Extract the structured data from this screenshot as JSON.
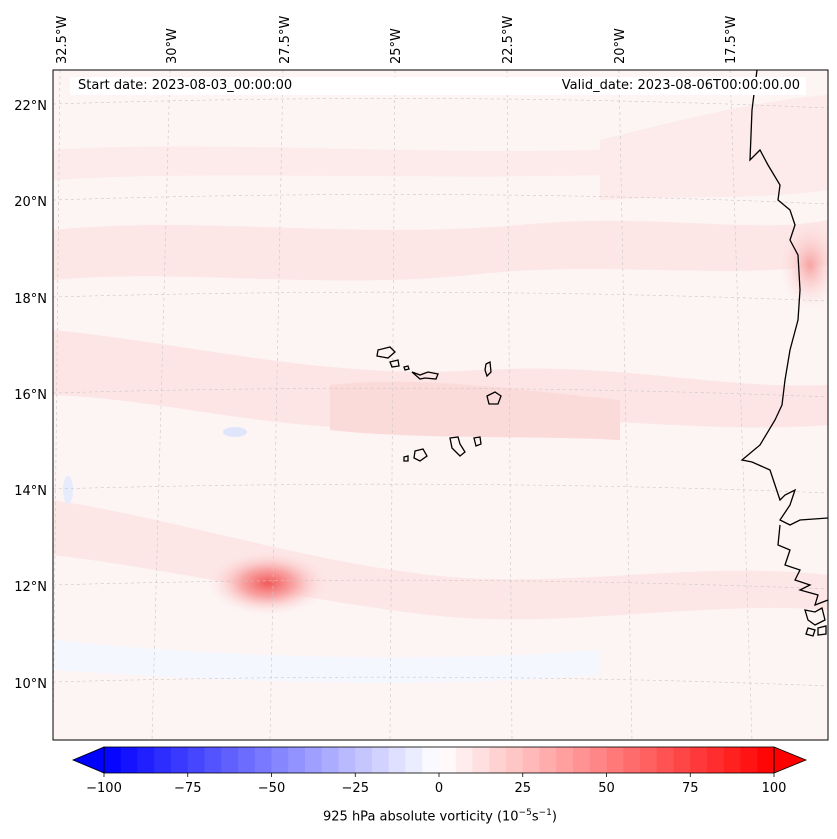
{
  "header": {
    "start_date": "Start date: 2023-08-03_00:00:00",
    "valid_date": "Valid_date: 2023-08-06T00:00:00.00"
  },
  "map": {
    "variable": "925 hPa absolute vorticity",
    "lon_labels": [
      "32.5°W",
      "30°W",
      "27.5°W",
      "25°W",
      "22.5°W",
      "20°W",
      "17.5°W"
    ],
    "lat_labels": [
      "22°N",
      "20°N",
      "18°N",
      "16°N",
      "14°N",
      "12°N",
      "10°N"
    ],
    "features": [
      "Cape Verde Islands",
      "West African coastline",
      "vorticity maximum near 12°N 28°W"
    ]
  },
  "colorbar": {
    "label": "925 hPa absolute vorticity (10⁻⁵s⁻¹)",
    "label_base": "925 hPa absolute vorticity (10",
    "label_exp1": "−5",
    "label_mid": "s",
    "label_exp2": "−1",
    "label_end": ")",
    "ticks": [
      "−100",
      "−75",
      "−50",
      "−25",
      "0",
      "25",
      "50",
      "75",
      "100"
    ],
    "tick_values": [
      -100,
      -75,
      -50,
      -25,
      0,
      25,
      50,
      75,
      100
    ],
    "min": -100,
    "max": 100,
    "step": 5,
    "colors": {
      "negative_end": "#0000ff",
      "zero": "#ffffff",
      "positive_end": "#ff0000",
      "coast": "#000000",
      "grid": "#c8c8c8"
    }
  }
}
